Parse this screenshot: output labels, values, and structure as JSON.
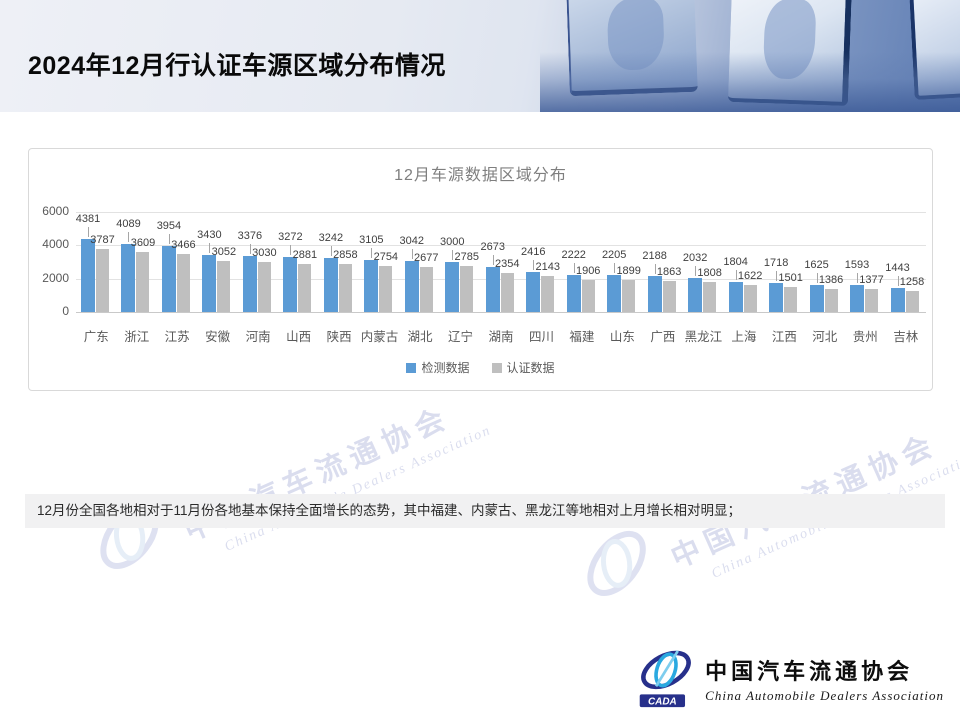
{
  "header": {
    "title": "2024年12月行认证车源区域分布情况"
  },
  "chart_data": {
    "type": "bar",
    "title": "12月车源数据区域分布",
    "categories": [
      "广东",
      "浙江",
      "江苏",
      "安徽",
      "河南",
      "山西",
      "陕西",
      "内蒙古",
      "湖北",
      "辽宁",
      "湖南",
      "四川",
      "福建",
      "山东",
      "广西",
      "黑龙江",
      "上海",
      "江西",
      "河北",
      "贵州",
      "吉林"
    ],
    "series": [
      {
        "name": "检测数据",
        "color": "#5B9BD5",
        "values": [
          4381,
          4089,
          3954,
          3430,
          3376,
          3272,
          3242,
          3105,
          3042,
          3000,
          2673,
          2416,
          2222,
          2205,
          2188,
          2032,
          1804,
          1718,
          1625,
          1593,
          1443
        ]
      },
      {
        "name": "认证数据",
        "color": "#BFBFBF",
        "values": [
          3787,
          3609,
          3466,
          3052,
          3030,
          2881,
          2858,
          2754,
          2677,
          2785,
          2354,
          2143,
          1906,
          1899,
          1863,
          1808,
          1622,
          1501,
          1386,
          1377,
          1258
        ]
      }
    ],
    "xlabel": "",
    "ylabel": "",
    "ylim": [
      0,
      6000
    ],
    "y_tick_step": 2000,
    "grid": true,
    "legend_position": "bottom"
  },
  "note": {
    "text": "12月份全国各地相对于11月份各地基本保持全面增长的态势，其中福建、内蒙古、黑龙江等地相对上月增长相对明显；"
  },
  "watermark": {
    "cn": "中国汽车流通协会",
    "en": "China Automobile Dealers Association"
  },
  "footer_logo": {
    "badge": "CADA",
    "cn": "中国汽车流通协会",
    "en": "China Automobile Dealers Association"
  },
  "colors": {
    "bar_blue": "#5B9BD5",
    "bar_gray": "#BFBFBF",
    "grid": "#E2E2E2",
    "data_label": "#404040",
    "axis_text": "#595959",
    "chart_title": "#7F7F7F"
  }
}
